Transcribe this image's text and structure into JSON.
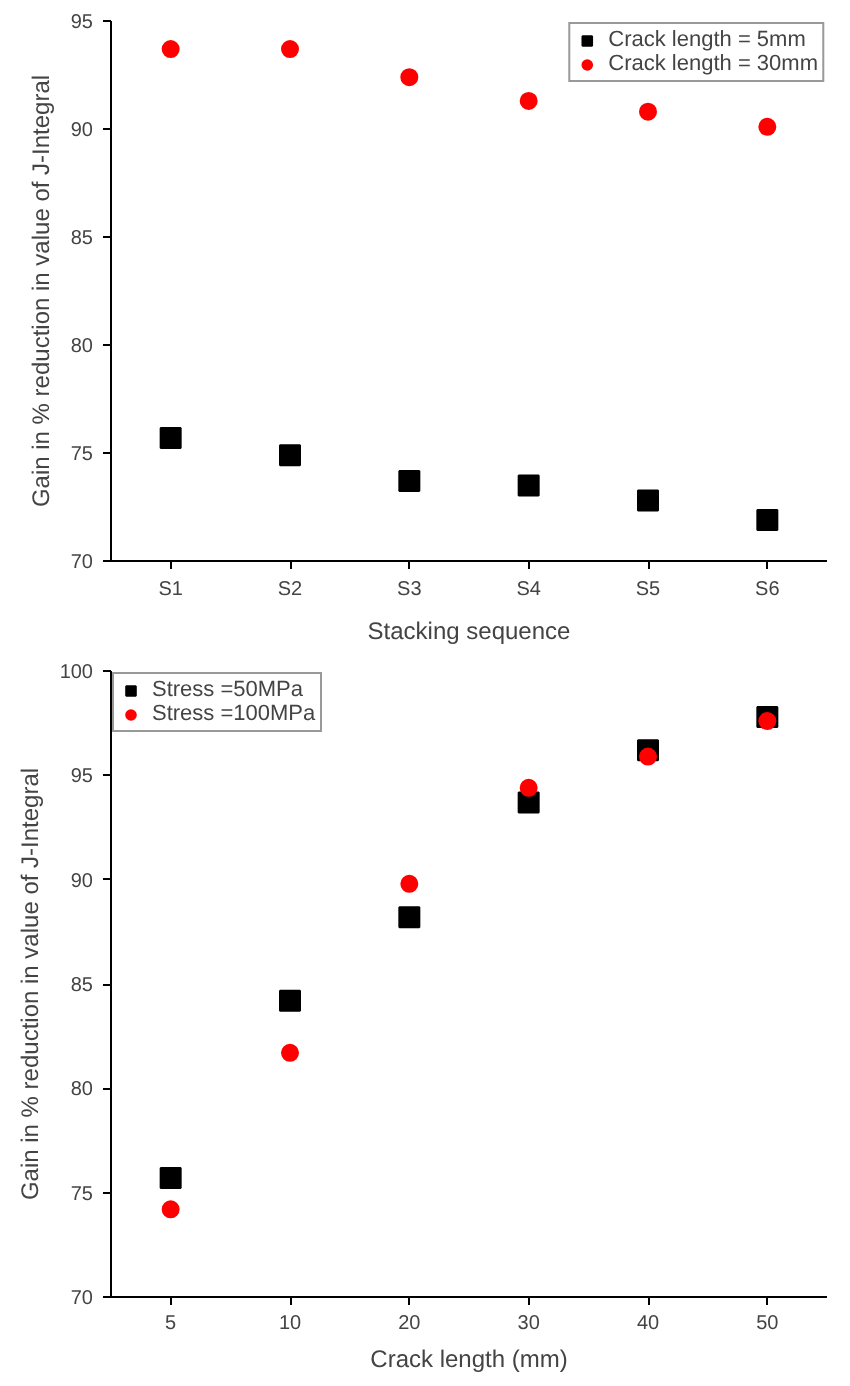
{
  "chart_data": [
    {
      "type": "scatter",
      "xlabel": "Stacking sequence",
      "ylabel": "Gain in % reduction in value of J-Integral",
      "categories": [
        "S1",
        "S2",
        "S3",
        "S4",
        "S5",
        "S6"
      ],
      "series": [
        {
          "name": "Crack length = 5mm",
          "color": "#000000",
          "marker": "square",
          "values": [
            75.7,
            74.9,
            73.7,
            73.5,
            72.8,
            71.9
          ]
        },
        {
          "name": "Crack length = 30mm",
          "color": "#ff0000",
          "marker": "circle",
          "values": [
            93.7,
            93.7,
            92.4,
            91.3,
            90.8,
            90.1
          ]
        }
      ],
      "ylim": [
        70,
        95
      ],
      "yticks": [
        70,
        75,
        80,
        85,
        90,
        95
      ],
      "grid": false,
      "legend": "top right"
    },
    {
      "type": "scatter",
      "xlabel": "Crack length (mm)",
      "ylabel": "Gain in % reduction in value of J-Integral",
      "categories": [
        "5",
        "10",
        "20",
        "30",
        "40",
        "50"
      ],
      "series": [
        {
          "name": "Stress =50MPa",
          "color": "#000000",
          "marker": "square",
          "values": [
            75.7,
            84.2,
            88.2,
            93.7,
            96.2,
            97.8
          ]
        },
        {
          "name": "Stress =100MPa",
          "color": "#ff0000",
          "marker": "circle",
          "values": [
            74.2,
            81.7,
            89.8,
            94.4,
            95.9,
            97.6
          ]
        }
      ],
      "ylim": [
        70,
        100
      ],
      "yticks": [
        70,
        75,
        80,
        85,
        90,
        95,
        100
      ],
      "grid": false,
      "legend": "top left"
    }
  ]
}
